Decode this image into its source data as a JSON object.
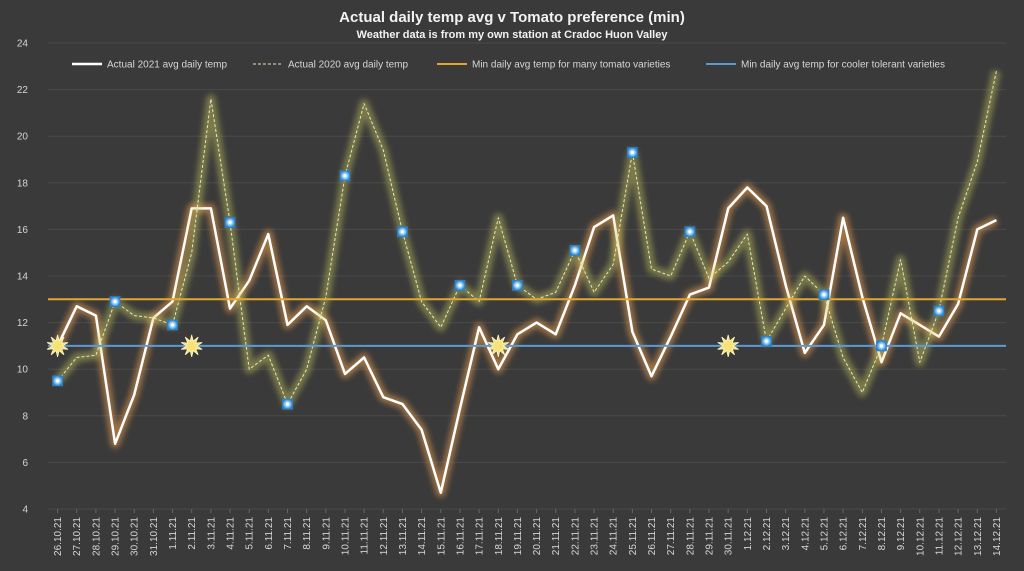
{
  "chart_data": {
    "type": "line",
    "title": "Actual daily temp avg v Tomato preference (min)",
    "subtitle": "Weather data is from my own station at Cradoc Huon Valley",
    "xlabel": "",
    "ylabel": "",
    "ylim": [
      4,
      24
    ],
    "yticks": [
      4,
      6,
      8,
      10,
      12,
      14,
      16,
      18,
      20,
      22,
      24
    ],
    "legend_position": "top",
    "categories": [
      "26.10.21",
      "27.10.21",
      "28.10.21",
      "29.10.21",
      "30.10.21",
      "31.10.21",
      "1.11.21",
      "2.11.21",
      "3.11.21",
      "4.11.21",
      "5.11.21",
      "6.11.21",
      "7.11.21",
      "8.11.21",
      "9.11.21",
      "10.11.21",
      "11.11.21",
      "12.11.21",
      "13.11.21",
      "14.11.21",
      "15.11.21",
      "16.11.21",
      "17.11.21",
      "18.11.21",
      "19.11.21",
      "20.11.21",
      "21.11.21",
      "22.11.21",
      "23.11.21",
      "24.11.21",
      "25.11.21",
      "26.11.21",
      "27.11.21",
      "28.11.21",
      "29.11.21",
      "30.11.21",
      "1.12.21",
      "2.12.21",
      "3.12.21",
      "4.12.21",
      "5.12.21",
      "6.12.21",
      "7.12.21",
      "8.12.21",
      "9.12.21",
      "10.12.21",
      "11.12.21",
      "12.12.21",
      "13.12.21",
      "14.12.21"
    ],
    "series": [
      {
        "name": "Actual 2021 avg daily temp",
        "color": "#ffffff",
        "glow": "#f0a050",
        "style": "solid",
        "values": [
          11.0,
          12.7,
          12.3,
          6.8,
          8.9,
          12.2,
          12.9,
          16.9,
          16.9,
          12.6,
          13.8,
          15.8,
          11.9,
          12.7,
          12.1,
          9.8,
          10.5,
          8.8,
          8.5,
          7.4,
          4.7,
          8.3,
          11.8,
          10.0,
          11.5,
          12.0,
          11.5,
          13.6,
          16.1,
          16.6,
          11.6,
          9.7,
          11.4,
          13.2,
          13.5,
          16.9,
          17.8,
          17.0,
          13.6,
          10.7,
          11.9,
          16.5,
          13.1,
          10.3,
          12.4,
          11.9,
          11.4,
          12.8,
          16.0,
          16.4
        ]
      },
      {
        "name": "Actual 2020 avg daily temp",
        "color": "#e8e6b8",
        "glow": "#c8c860",
        "style": "dashed",
        "values": [
          9.5,
          10.5,
          10.6,
          12.9,
          12.3,
          12.2,
          11.9,
          15.0,
          21.6,
          16.3,
          10.0,
          10.6,
          8.5,
          10.0,
          13.1,
          18.3,
          21.4,
          19.4,
          15.9,
          12.9,
          11.8,
          13.6,
          12.9,
          16.5,
          13.6,
          13.0,
          13.3,
          15.1,
          13.3,
          14.5,
          19.3,
          14.3,
          14.0,
          15.9,
          13.9,
          14.6,
          15.8,
          11.2,
          12.6,
          14.0,
          13.2,
          10.5,
          9.0,
          11.0,
          14.7,
          10.3,
          12.5,
          16.5,
          18.9,
          22.8
        ]
      },
      {
        "name": "Min daily avg temp for many tomato varieties",
        "color": "#e2a72e",
        "style": "solid",
        "constant": 13
      },
      {
        "name": "Min daily avg temp for cooler tolerant varieties",
        "color": "#5b9bd5",
        "style": "solid",
        "constant": 11
      }
    ],
    "annotations": {
      "star_markers_index": [
        0,
        7,
        23,
        35
      ],
      "star_marker_value": 11,
      "square_markers_index": [
        0,
        3,
        6,
        9,
        12,
        15,
        18,
        21,
        24,
        27,
        30,
        33,
        37,
        40,
        43,
        46
      ]
    }
  }
}
